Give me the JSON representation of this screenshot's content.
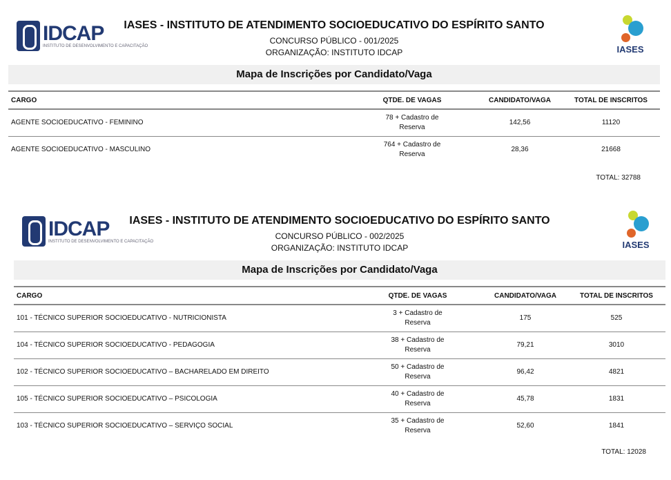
{
  "sections": [
    {
      "org_logo": "IDCAP",
      "org_logo_sub": "INSTITUTO DE DESENVOLVIMENTO E CAPACITAÇÃO",
      "client_logo": "IASES",
      "title": "IASES - INSTITUTO DE ATENDIMENTO SOCIOEDUCATIVO DO ESPÍRITO SANTO",
      "concurso": "CONCURSO PÚBLICO - 001/2025",
      "organizacao": "ORGANIZAÇÃO: INSTITUTO IDCAP",
      "banner": "Mapa de Inscrições por Candidato/Vaga",
      "columns": [
        "CARGO",
        "QTDE. DE VAGAS",
        "CANDIDATO/VAGA",
        "TOTAL DE INSCRITOS"
      ],
      "rows": [
        {
          "cargo": "AGENTE SOCIOEDUCATIVO - FEMININO",
          "vagas": "78 + Cadastro de Reserva",
          "cand": "142,56",
          "total": "11120"
        },
        {
          "cargo": "AGENTE SOCIOEDUCATIVO - MASCULINO",
          "vagas": "764 + Cadastro de Reserva",
          "cand": "28,36",
          "total": "21668"
        }
      ],
      "total": "TOTAL: 32788"
    },
    {
      "org_logo": "IDCAP",
      "org_logo_sub": "INSTITUTO DE DESENVOLVIMENTO E CAPACITAÇÃO",
      "client_logo": "IASES",
      "title": "IASES - INSTITUTO DE ATENDIMENTO SOCIOEDUCATIVO DO ESPÍRITO SANTO",
      "concurso": "CONCURSO PÚBLICO - 002/2025",
      "organizacao": "ORGANIZAÇÃO: INSTITUTO IDCAP",
      "banner": "Mapa de Inscrições por Candidato/Vaga",
      "columns": [
        "CARGO",
        "QTDE. DE VAGAS",
        "CANDIDATO/VAGA",
        "TOTAL DE INSCRITOS"
      ],
      "rows": [
        {
          "cargo": "101 - TÉCNICO SUPERIOR SOCIOEDUCATIVO - NUTRICIONISTA",
          "vagas": "3 + Cadastro de Reserva",
          "cand": "175",
          "total": "525"
        },
        {
          "cargo": "104 - TÉCNICO SUPERIOR SOCIOEDUCATIVO - PEDAGOGIA",
          "vagas": "38 + Cadastro de Reserva",
          "cand": "79,21",
          "total": "3010"
        },
        {
          "cargo": "102 - TÉCNICO SUPERIOR SOCIOEDUCATIVO – BACHARELADO EM DIREITO",
          "vagas": "50 + Cadastro de Reserva",
          "cand": "96,42",
          "total": "4821"
        },
        {
          "cargo": "105 - TÉCNICO SUPERIOR SOCIOEDUCATIVO – PSICOLOGIA",
          "vagas": "40 + Cadastro de Reserva",
          "cand": "45,78",
          "total": "1831"
        },
        {
          "cargo": "103 - TÉCNICO SUPERIOR SOCIOEDUCATIVO – SERVIÇO SOCIAL",
          "vagas": "35 + Cadastro de Reserva",
          "cand": "52,60",
          "total": "1841"
        }
      ],
      "total": "TOTAL: 12028"
    }
  ],
  "colors": {
    "brand_blue": "#223a73",
    "banner_bg": "#f0f0f0"
  }
}
